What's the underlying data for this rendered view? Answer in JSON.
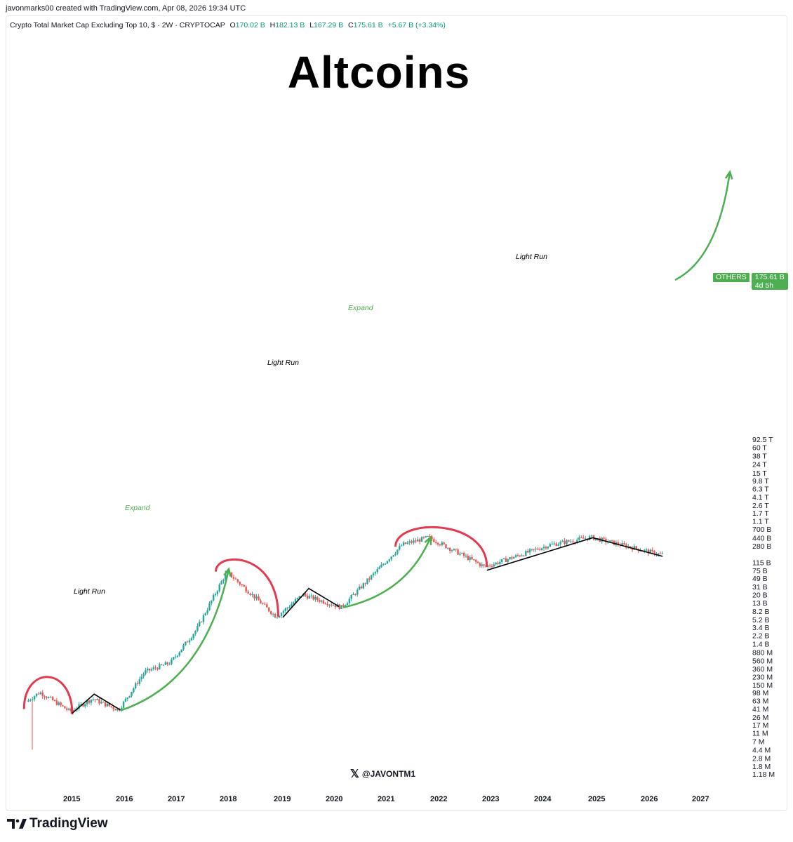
{
  "attribution": "javonmarks00 created with TradingView.com, Apr 08, 2026 19:34 UTC",
  "ohlc": {
    "symbol_desc": "Crypto Total Market Cap Excluding Top 10, $ · 2W · CRYPTOCAP",
    "open_label": "O",
    "open": "170.02 B",
    "high_label": "H",
    "high": "182.13 B",
    "low_label": "L",
    "low": "167.29 B",
    "close_label": "C",
    "close": "175.61 B",
    "change": "+5.67 B (+3.34%)"
  },
  "price_badge": {
    "symbol": "OTHERS",
    "price": "175.61 B",
    "countdown": "4d 5h"
  },
  "watermark": {
    "icon": "x-logo-icon",
    "handle": "@JAVONTM1"
  },
  "branding": {
    "logo": "tradingview-logo-icon",
    "name": "TradingView"
  },
  "colors": {
    "up": "#26a69a",
    "down": "#ef5350",
    "arrow": "#4caf50",
    "arc": "#e53950",
    "line": "#000000"
  },
  "chart_data": {
    "type": "candlestick",
    "title": "Altcoins",
    "y_scale": "log",
    "y_ticks": [
      "92.5 T",
      "60 T",
      "38 T",
      "24 T",
      "15 T",
      "9.8 T",
      "6.3 T",
      "4.1 T",
      "2.6 T",
      "1.7 T",
      "1.1 T",
      "700 B",
      "440 B",
      "280 B",
      "175.61 B",
      "115 B",
      "75 B",
      "49 B",
      "31 B",
      "20 B",
      "13 B",
      "8.2 B",
      "5.2 B",
      "3.4 B",
      "2.2 B",
      "1.4 B",
      "880 M",
      "560 M",
      "360 M",
      "230 M",
      "150 M",
      "98 M",
      "63 M",
      "41 M",
      "26 M",
      "17 M",
      "11 M",
      "7 M",
      "4.4 M",
      "2.8 M",
      "1.8 M",
      "1.18 M"
    ],
    "x_ticks": [
      "2015",
      "2016",
      "2017",
      "2018",
      "2019",
      "2020",
      "2021",
      "2022",
      "2023",
      "2024",
      "2025",
      "2026",
      "2027"
    ],
    "annotations": [
      {
        "text": "Light Run",
        "type": "label"
      },
      {
        "text": "Expand",
        "type": "label"
      },
      {
        "text": "Light Run",
        "type": "label"
      },
      {
        "text": "Expand",
        "type": "label"
      },
      {
        "text": "Light Run",
        "type": "label"
      }
    ],
    "series_approx": [
      {
        "date": "2014-03",
        "value": "60M"
      },
      {
        "date": "2014-06",
        "value": "100M"
      },
      {
        "date": "2015-01",
        "value": "35M"
      },
      {
        "date": "2015-06",
        "value": "70M"
      },
      {
        "date": "2015-12",
        "value": "38M"
      },
      {
        "date": "2016-06",
        "value": "300M"
      },
      {
        "date": "2016-12",
        "value": "500M"
      },
      {
        "date": "2017-06",
        "value": "3B"
      },
      {
        "date": "2018-01",
        "value": "70B"
      },
      {
        "date": "2018-12",
        "value": "6B"
      },
      {
        "date": "2019-06",
        "value": "20B"
      },
      {
        "date": "2020-03",
        "value": "10B"
      },
      {
        "date": "2021-05",
        "value": "300B"
      },
      {
        "date": "2021-11",
        "value": "450B"
      },
      {
        "date": "2022-12",
        "value": "90B"
      },
      {
        "date": "2024-03",
        "value": "300B"
      },
      {
        "date": "2024-12",
        "value": "450B"
      },
      {
        "date": "2026-04",
        "value": "175.61B"
      }
    ]
  }
}
